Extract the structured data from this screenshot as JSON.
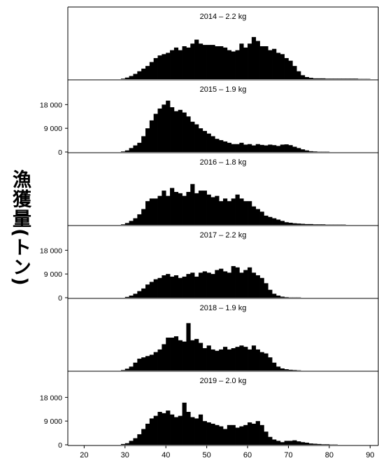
{
  "chart_data": {
    "type": "bar",
    "ylabel": "漁獲量(トン)",
    "xlim": [
      16,
      92
    ],
    "ylim": [
      0,
      25000
    ],
    "x_ticks": [
      20,
      30,
      40,
      50,
      60,
      70,
      80,
      90
    ],
    "y_ticks": [
      0,
      9000,
      18000
    ],
    "y_tick_labels": [
      "0",
      "9 000",
      "18 000"
    ],
    "y_ticks_on_panels": [
      1,
      3,
      5
    ],
    "bin_start": 18,
    "bin_width": 1,
    "panels": [
      {
        "title": "2014 – 2.2 kg",
        "values": [
          0,
          0,
          0,
          0,
          0,
          0,
          0,
          0,
          0,
          0,
          0,
          200,
          600,
          1200,
          2000,
          3000,
          4000,
          5000,
          6500,
          8000,
          9000,
          9500,
          10000,
          11000,
          12000,
          11000,
          12500,
          12000,
          13500,
          15000,
          13500,
          13000,
          13000,
          13000,
          12500,
          12500,
          12000,
          11000,
          10500,
          11000,
          13500,
          12000,
          13500,
          16000,
          14500,
          12500,
          12500,
          11000,
          11500,
          10000,
          9500,
          8000,
          7000,
          5000,
          3000,
          1500,
          800,
          500,
          300,
          300,
          300,
          200,
          200,
          200,
          200,
          200,
          200,
          200,
          200,
          100,
          100,
          100,
          0,
          0
        ]
      },
      {
        "title": "2015 – 1.9 kg",
        "values": [
          0,
          0,
          0,
          0,
          0,
          0,
          0,
          0,
          0,
          0,
          0,
          200,
          600,
          1500,
          2500,
          3500,
          6000,
          9000,
          12000,
          14500,
          16500,
          18000,
          19500,
          17000,
          15500,
          16000,
          15000,
          13500,
          11500,
          10500,
          9000,
          8000,
          7000,
          6000,
          5000,
          4500,
          4000,
          3500,
          3000,
          3000,
          3500,
          2800,
          3000,
          2500,
          3000,
          2700,
          2500,
          2800,
          2600,
          2300,
          2800,
          2900,
          2600,
          2000,
          1500,
          1000,
          600,
          300,
          200,
          100,
          100,
          100,
          0,
          0,
          0,
          0,
          0,
          0,
          0,
          0,
          0,
          0,
          0,
          0
        ]
      },
      {
        "title": "2016 – 1.8 kg",
        "values": [
          0,
          0,
          0,
          0,
          0,
          0,
          0,
          0,
          0,
          0,
          0,
          200,
          700,
          1500,
          2500,
          4000,
          6000,
          9000,
          10000,
          10000,
          11000,
          13000,
          11000,
          14000,
          12500,
          12000,
          11000,
          12500,
          15500,
          12000,
          13000,
          13000,
          11500,
          10500,
          11000,
          9000,
          10000,
          9000,
          10000,
          11500,
          10000,
          9000,
          9000,
          7000,
          6000,
          5000,
          3500,
          3000,
          2500,
          2000,
          1500,
          1000,
          800,
          600,
          500,
          400,
          300,
          300,
          200,
          200,
          200,
          100,
          100,
          100,
          100,
          100,
          0,
          0,
          0,
          0,
          0,
          0,
          0,
          0
        ]
      },
      {
        "title": "2017 – 2.2 kg",
        "values": [
          0,
          0,
          0,
          0,
          0,
          0,
          0,
          0,
          0,
          0,
          0,
          0,
          300,
          800,
          1500,
          2500,
          3500,
          5000,
          6000,
          7000,
          7500,
          8500,
          9000,
          8000,
          8500,
          7500,
          8000,
          9000,
          9500,
          8000,
          9500,
          10000,
          9500,
          9000,
          10500,
          11000,
          10000,
          9500,
          12000,
          11500,
          9500,
          10500,
          11500,
          9500,
          8500,
          7500,
          5500,
          3000,
          1500,
          800,
          400,
          200,
          100,
          100,
          100,
          0,
          0,
          0,
          0,
          0,
          0,
          0,
          0,
          0,
          0,
          0,
          0,
          0,
          0,
          0,
          0,
          0,
          0,
          0
        ]
      },
      {
        "title": "2018 – 1.9 kg",
        "values": [
          0,
          0,
          0,
          0,
          0,
          0,
          0,
          0,
          0,
          0,
          0,
          200,
          700,
          1500,
          3000,
          4500,
          5000,
          5500,
          6000,
          7000,
          8000,
          10000,
          12500,
          12500,
          13000,
          11500,
          11000,
          18000,
          11500,
          12000,
          10500,
          8500,
          9500,
          8000,
          7500,
          8000,
          9000,
          8000,
          8500,
          9000,
          9500,
          9000,
          8000,
          9500,
          8000,
          7000,
          6500,
          5000,
          3000,
          1500,
          800,
          500,
          300,
          200,
          100,
          0,
          0,
          0,
          0,
          0,
          0,
          0,
          0,
          0,
          0,
          0,
          0,
          0,
          0,
          0,
          0,
          0,
          0,
          0
        ]
      },
      {
        "title": "2019 – 2.0 kg",
        "values": [
          0,
          0,
          0,
          0,
          0,
          0,
          0,
          0,
          0,
          0,
          0,
          300,
          600,
          1500,
          2500,
          4000,
          6000,
          8000,
          10000,
          11000,
          12500,
          12000,
          13000,
          11500,
          10500,
          11000,
          16000,
          12500,
          10500,
          10000,
          11500,
          9000,
          8500,
          8000,
          7500,
          7000,
          6000,
          7500,
          7500,
          6500,
          7000,
          7500,
          8500,
          8000,
          9000,
          7500,
          5000,
          3000,
          2000,
          1500,
          1000,
          1500,
          1500,
          1700,
          1300,
          1000,
          800,
          500,
          400,
          300,
          200,
          200,
          100,
          100,
          0,
          0,
          0,
          0,
          0,
          0,
          0,
          0,
          0,
          0
        ]
      }
    ]
  }
}
